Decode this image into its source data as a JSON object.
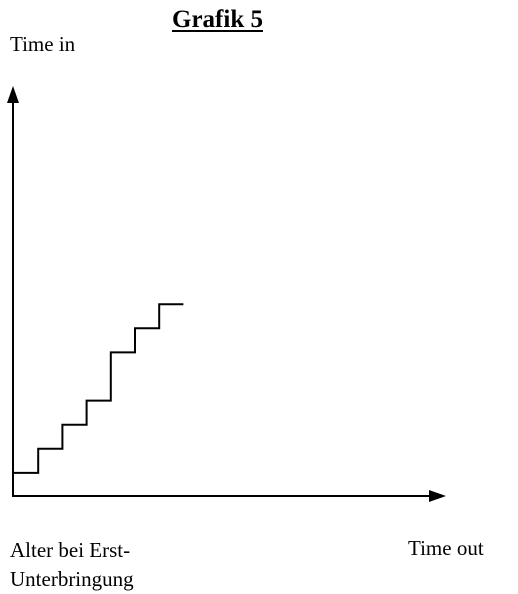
{
  "title": "Grafik 5",
  "axis_labels": {
    "y": "Time in",
    "x_left_lines": [
      "Alter bei Erst-",
      "Unterbringung"
    ],
    "x_right": "Time out"
  },
  "step_line": {
    "x": [
      0,
      1,
      2,
      3,
      4,
      5,
      6,
      7
    ],
    "y": [
      1,
      2,
      3,
      4,
      6,
      7,
      8,
      8
    ]
  },
  "colors": {
    "stroke": "#000000",
    "background": "#ffffff"
  }
}
